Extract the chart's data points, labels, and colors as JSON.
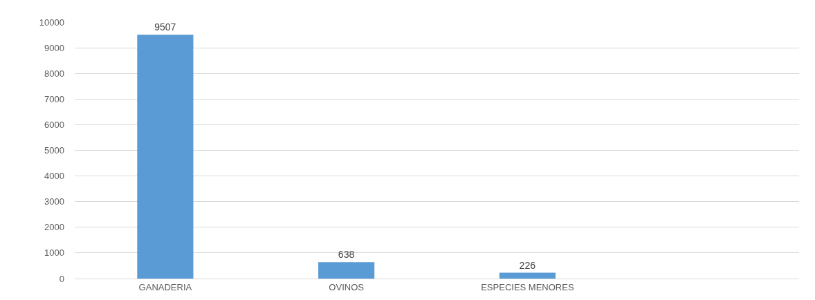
{
  "chart_data": {
    "type": "bar",
    "categories": [
      "GANADERIA",
      "OVINOS",
      "ESPECIES MENORES",
      null
    ],
    "values": [
      9507,
      638,
      226,
      null
    ],
    "color": "#5b9bd5",
    "ylim": [
      0,
      10000
    ],
    "yticks": [
      0,
      1000,
      2000,
      3000,
      4000,
      5000,
      6000,
      7000,
      8000,
      9000,
      10000
    ],
    "grid": "y",
    "data_labels": true
  }
}
